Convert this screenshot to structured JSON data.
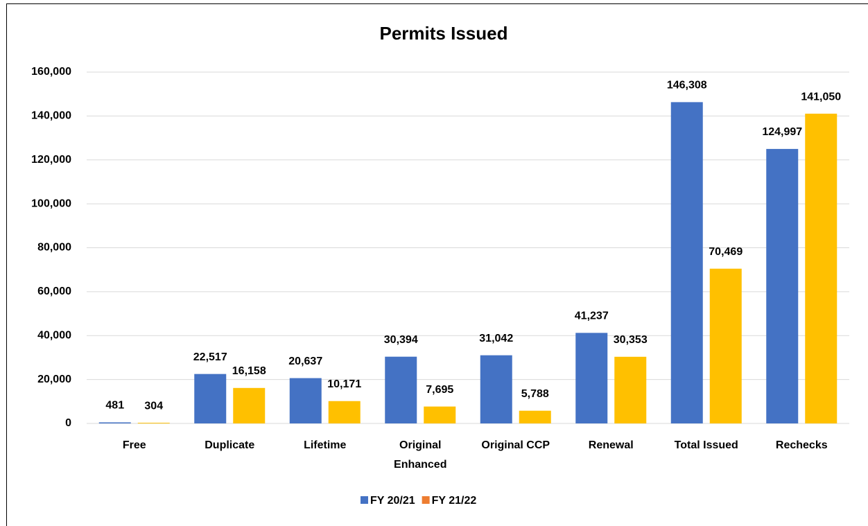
{
  "chart_data": {
    "type": "bar",
    "title": "Permits Issued",
    "categories": [
      "Free",
      "Duplicate",
      "Lifetime",
      "Original Enhanced",
      "Original CCP",
      "Renewal",
      "Total Issued",
      "Rechecks"
    ],
    "series": [
      {
        "name": "FY 20/21",
        "color": "#4472c4",
        "legend_color": "#4472c4",
        "values": [
          481,
          22517,
          20637,
          30394,
          31042,
          41237,
          146308,
          124997
        ],
        "value_labels": [
          "481",
          "22,517",
          "20,637",
          "30,394",
          "31,042",
          "41,237",
          "146,308",
          "124,997"
        ]
      },
      {
        "name": "FY 21/22",
        "color": "#ffc000",
        "legend_color": "#ed7d31",
        "values": [
          304,
          16158,
          10171,
          7695,
          5788,
          30353,
          70469,
          141050
        ],
        "value_labels": [
          "304",
          "16,158",
          "10,171",
          "7,695",
          "5,788",
          "30,353",
          "70,469",
          "141,050"
        ]
      }
    ],
    "ylim": [
      0,
      160000
    ],
    "yticks": [
      0,
      {
        "value": 20000,
        "label": "20,000"
      },
      {
        "value": 40000,
        "label": "40,000"
      },
      {
        "value": 60000,
        "label": "60,000"
      },
      {
        "value": 80000,
        "label": "80,000"
      },
      {
        "value": 100000,
        "label": "100,000"
      },
      {
        "value": 120000,
        "label": "120,000"
      },
      {
        "value": 140000,
        "label": "140,000"
      },
      {
        "value": 160000,
        "label": "160,000"
      }
    ],
    "grid": true,
    "legend": "bottom"
  }
}
